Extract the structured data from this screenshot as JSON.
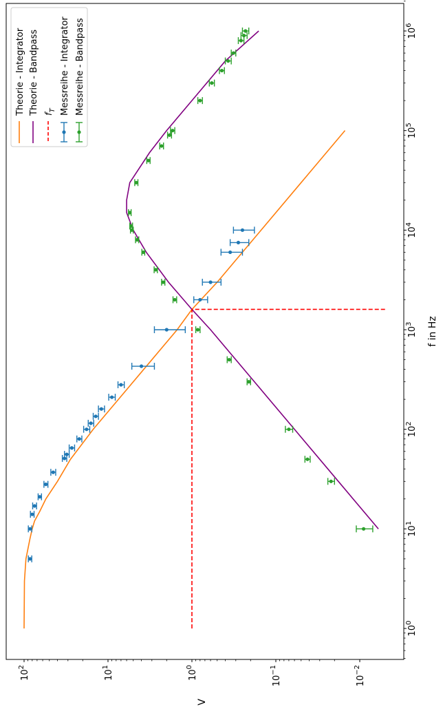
{
  "chart_data": {
    "type": "line",
    "xlabel": "f in Hz",
    "ylabel": "V",
    "x_scale": "log",
    "y_scale": "log",
    "xlim": [
      0.5,
      2000000
    ],
    "ylim": [
      0.003,
      150
    ],
    "x_ticks": [
      {
        "value": 1,
        "label": "10^0"
      },
      {
        "value": 10,
        "label": "10^1"
      },
      {
        "value": 100,
        "label": "10^2"
      },
      {
        "value": 1000,
        "label": "10^3"
      },
      {
        "value": 10000,
        "label": "10^4"
      },
      {
        "value": 100000,
        "label": "10^5"
      },
      {
        "value": 1000000,
        "label": "10^6"
      }
    ],
    "y_ticks": [
      {
        "value": 100,
        "label": "10^2"
      },
      {
        "value": 10,
        "label": "10^1"
      },
      {
        "value": 1,
        "label": "10^0"
      },
      {
        "value": 0.1,
        "label": "10^−1"
      },
      {
        "value": 0.01,
        "label": "10^−2"
      }
    ],
    "legend_position": "top-left",
    "legend": [
      {
        "label": "Theorie - Integrator",
        "kind": "line",
        "color": "#ff7f0e"
      },
      {
        "label": "Theorie - Bandpass",
        "kind": "line",
        "color": "#800080"
      },
      {
        "label": "f_T",
        "kind": "dashed",
        "color": "#ff0000"
      },
      {
        "label": "Messreihe - Integrator",
        "kind": "errorbar",
        "color": "#1f77b4"
      },
      {
        "label": "Messreihe - Bandpass",
        "kind": "errorbar",
        "color": "#2ca02c"
      }
    ],
    "series": [
      {
        "name": "Theorie - Integrator",
        "kind": "curve",
        "color": "#ff7f0e",
        "x": [
          1,
          3,
          5,
          8,
          10,
          12,
          15,
          20,
          30,
          50,
          100,
          200,
          500,
          1000,
          1600,
          3000,
          10000,
          30000,
          100000
        ],
        "y": [
          100,
          99,
          95,
          85,
          80,
          75,
          65,
          55,
          40,
          28,
          15,
          7.5,
          3,
          1.5,
          1,
          0.5,
          0.15,
          0.05,
          0.015
        ]
      },
      {
        "name": "Theorie - Bandpass",
        "kind": "curve",
        "color": "#800080",
        "x": [
          10,
          30,
          100,
          300,
          1000,
          1600,
          3000,
          6000,
          10000,
          15000,
          20000,
          30000,
          60000,
          100000,
          200000,
          500000,
          1000000
        ],
        "y": [
          0.006,
          0.018,
          0.06,
          0.18,
          0.6,
          1,
          1.9,
          3.5,
          5,
          6,
          6,
          5.5,
          3.2,
          2,
          1,
          0.4,
          0.16
        ]
      },
      {
        "name": "f_T",
        "kind": "dashed",
        "color": "#ff0000",
        "vertical": {
          "x": 1600,
          "y0": 0.005,
          "y1": 1
        },
        "horizontal": {
          "y": 1,
          "x0": 1,
          "x1": 1600
        }
      },
      {
        "name": "Messreihe - Integrator",
        "kind": "errorbar",
        "color": "#1f77b4",
        "points": [
          {
            "x": 5,
            "y": 85,
            "yerr": 4
          },
          {
            "x": 10,
            "y": 85,
            "yerr": 4
          },
          {
            "x": 14,
            "y": 80,
            "yerr": 4
          },
          {
            "x": 17,
            "y": 75,
            "yerr": 4
          },
          {
            "x": 21,
            "y": 65,
            "yerr": 3
          },
          {
            "x": 28,
            "y": 55,
            "yerr": 3
          },
          {
            "x": 37,
            "y": 45,
            "yerr": 3
          },
          {
            "x": 51,
            "y": 33,
            "yerr": 2
          },
          {
            "x": 56,
            "y": 31,
            "yerr": 2
          },
          {
            "x": 65,
            "y": 27,
            "yerr": 2
          },
          {
            "x": 80,
            "y": 22,
            "yerr": 1.5
          },
          {
            "x": 100,
            "y": 18,
            "yerr": 1.5
          },
          {
            "x": 115,
            "y": 16,
            "yerr": 1.2
          },
          {
            "x": 135,
            "y": 14,
            "yerr": 1
          },
          {
            "x": 160,
            "y": 12,
            "yerr": 1
          },
          {
            "x": 210,
            "y": 9,
            "yerr": 0.8
          },
          {
            "x": 280,
            "y": 7,
            "yerr": 0.6
          },
          {
            "x": 430,
            "y": 4,
            "yerr": 1.2
          },
          {
            "x": 1000,
            "y": 2,
            "yerr": 0.8
          },
          {
            "x": 2000,
            "y": 0.8,
            "yerr": 0.15
          },
          {
            "x": 3000,
            "y": 0.6,
            "yerr": 0.15
          },
          {
            "x": 6000,
            "y": 0.35,
            "yerr": 0.1
          },
          {
            "x": 7500,
            "y": 0.28,
            "yerr": 0.07
          },
          {
            "x": 10000,
            "y": 0.25,
            "yerr": 0.07
          }
        ]
      },
      {
        "name": "Messreihe - Bandpass",
        "kind": "errorbar",
        "color": "#2ca02c",
        "points": [
          {
            "x": 10,
            "y": 0.009,
            "yerr": 0.002
          },
          {
            "x": 30,
            "y": 0.022,
            "yerr": 0.002
          },
          {
            "x": 50,
            "y": 0.042,
            "yerr": 0.003
          },
          {
            "x": 100,
            "y": 0.07,
            "yerr": 0.007
          },
          {
            "x": 300,
            "y": 0.21,
            "yerr": 0.01
          },
          {
            "x": 500,
            "y": 0.36,
            "yerr": 0.02
          },
          {
            "x": 1000,
            "y": 0.85,
            "yerr": 0.05
          },
          {
            "x": 2000,
            "y": 1.6,
            "yerr": 0.08
          },
          {
            "x": 3000,
            "y": 2.2,
            "yerr": 0.1
          },
          {
            "x": 4000,
            "y": 2.7,
            "yerr": 0.12
          },
          {
            "x": 6000,
            "y": 3.8,
            "yerr": 0.15
          },
          {
            "x": 8000,
            "y": 4.5,
            "yerr": 0.2
          },
          {
            "x": 10000,
            "y": 5.2,
            "yerr": 0.2
          },
          {
            "x": 11000,
            "y": 5.3,
            "yerr": 0.2
          },
          {
            "x": 15000,
            "y": 5.5,
            "yerr": 0.2
          },
          {
            "x": 30000,
            "y": 4.6,
            "yerr": 0.2
          },
          {
            "x": 50000,
            "y": 3.3,
            "yerr": 0.15
          },
          {
            "x": 70000,
            "y": 2.3,
            "yerr": 0.12
          },
          {
            "x": 90000,
            "y": 1.85,
            "yerr": 0.1
          },
          {
            "x": 100000,
            "y": 1.7,
            "yerr": 0.1
          },
          {
            "x": 200000,
            "y": 0.8,
            "yerr": 0.05
          },
          {
            "x": 300000,
            "y": 0.58,
            "yerr": 0.04
          },
          {
            "x": 400000,
            "y": 0.44,
            "yerr": 0.03
          },
          {
            "x": 500000,
            "y": 0.37,
            "yerr": 0.03
          },
          {
            "x": 600000,
            "y": 0.32,
            "yerr": 0.02
          },
          {
            "x": 800000,
            "y": 0.26,
            "yerr": 0.02
          },
          {
            "x": 900000,
            "y": 0.24,
            "yerr": 0.02
          },
          {
            "x": 1000000,
            "y": 0.23,
            "yerr": 0.02
          }
        ]
      }
    ]
  }
}
